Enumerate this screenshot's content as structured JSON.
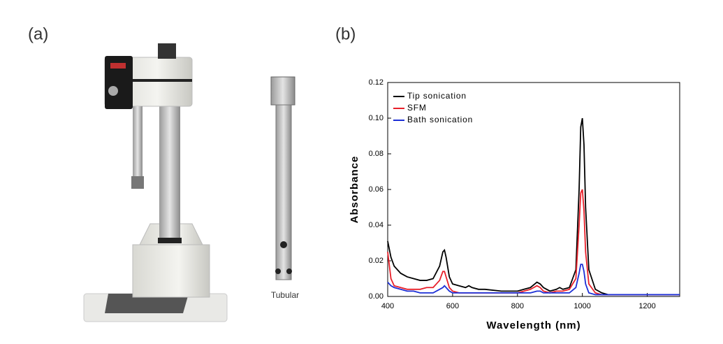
{
  "panels": {
    "a": "(a)",
    "b": "(b)"
  },
  "photo_caption": "Tubular",
  "chart_data": {
    "type": "line",
    "x_label": "Wavelength (nm)",
    "y_label": "Absorbance",
    "x": [
      400,
      410,
      420,
      440,
      460,
      480,
      500,
      520,
      540,
      560,
      570,
      575,
      580,
      590,
      600,
      620,
      640,
      650,
      660,
      680,
      700,
      750,
      800,
      820,
      840,
      860,
      870,
      880,
      900,
      920,
      930,
      940,
      960,
      980,
      990,
      995,
      1000,
      1005,
      1010,
      1020,
      1040,
      1060,
      1080,
      1100,
      1150,
      1200,
      1250,
      1300
    ],
    "series": [
      {
        "name": "Tip sonication",
        "color": "#000000",
        "values": [
          0.031,
          0.022,
          0.017,
          0.013,
          0.011,
          0.01,
          0.009,
          0.009,
          0.01,
          0.017,
          0.025,
          0.026,
          0.022,
          0.011,
          0.007,
          0.006,
          0.005,
          0.006,
          0.005,
          0.004,
          0.004,
          0.003,
          0.003,
          0.004,
          0.005,
          0.008,
          0.007,
          0.005,
          0.003,
          0.004,
          0.005,
          0.004,
          0.005,
          0.015,
          0.06,
          0.095,
          0.1,
          0.085,
          0.05,
          0.015,
          0.004,
          0.002,
          0.001,
          0.001,
          0.001,
          0.001,
          0.001,
          0.001
        ]
      },
      {
        "name": "SFM",
        "color": "#e8202a",
        "values": [
          0.025,
          0.01,
          0.006,
          0.005,
          0.004,
          0.004,
          0.004,
          0.005,
          0.005,
          0.009,
          0.014,
          0.014,
          0.011,
          0.005,
          0.003,
          0.002,
          0.002,
          0.002,
          0.002,
          0.002,
          0.002,
          0.002,
          0.002,
          0.003,
          0.004,
          0.006,
          0.005,
          0.003,
          0.002,
          0.003,
          0.003,
          0.003,
          0.004,
          0.01,
          0.04,
          0.058,
          0.06,
          0.048,
          0.025,
          0.007,
          0.002,
          0.001,
          0.001,
          0.001,
          0.001,
          0.001,
          0.001,
          0.001
        ]
      },
      {
        "name": "Bath sonication",
        "color": "#1c2fd6",
        "values": [
          0.008,
          0.006,
          0.005,
          0.004,
          0.003,
          0.003,
          0.002,
          0.002,
          0.002,
          0.004,
          0.005,
          0.006,
          0.005,
          0.003,
          0.002,
          0.002,
          0.002,
          0.002,
          0.002,
          0.002,
          0.002,
          0.002,
          0.002,
          0.002,
          0.002,
          0.003,
          0.003,
          0.002,
          0.002,
          0.002,
          0.002,
          0.002,
          0.002,
          0.005,
          0.013,
          0.018,
          0.018,
          0.014,
          0.007,
          0.002,
          0.001,
          0.001,
          0.001,
          0.001,
          0.001,
          0.001,
          0.001,
          0.001
        ]
      }
    ],
    "xlim": [
      400,
      1300
    ],
    "xticks": [
      400,
      600,
      800,
      1000,
      1200
    ],
    "ylim": [
      0,
      0.12
    ],
    "yticks": [
      {
        "value": 0,
        "label": "0.00"
      },
      0.02,
      0.04,
      0.06,
      0.08,
      {
        "value": 0.1,
        "label": "0.10"
      },
      0.12
    ],
    "legend": "upper left"
  }
}
